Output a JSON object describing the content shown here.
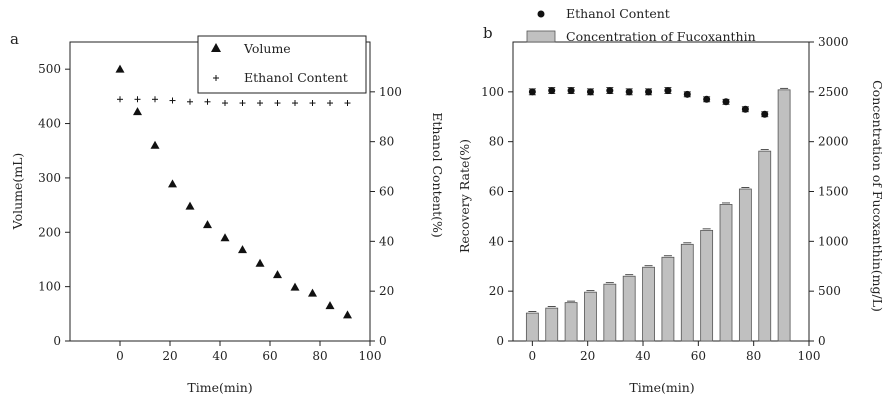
{
  "chart_data": [
    {
      "type": "scatter",
      "panel_label": "a",
      "xlabel": "Time(min)",
      "ylabel": "Volume(mL)",
      "y2label": "Ethanol Content(%)",
      "xlim": [
        -20,
        100
      ],
      "ylim": [
        0,
        550
      ],
      "y2lim": [
        0,
        120
      ],
      "xticks": [
        0,
        20,
        40,
        60,
        80,
        100
      ],
      "yticks": [
        0,
        100,
        200,
        300,
        400,
        500
      ],
      "y2ticks": [
        0,
        20,
        40,
        60,
        80,
        100
      ],
      "legend_position": "top-right",
      "series": [
        {
          "name": "Volume",
          "marker": "triangle",
          "axis": "left",
          "x": [
            0,
            7,
            14,
            21,
            28,
            35,
            42,
            49,
            56,
            63,
            70,
            77,
            84,
            91
          ],
          "y": [
            500,
            422,
            360,
            289,
            248,
            214,
            190,
            168,
            143,
            122,
            99,
            88,
            65,
            48
          ]
        },
        {
          "name": "Ethanol Content",
          "marker": "plus",
          "axis": "right",
          "x": [
            0,
            7,
            14,
            21,
            28,
            35,
            42,
            49,
            56,
            63,
            70,
            77,
            84,
            91
          ],
          "y": [
            97,
            97,
            97,
            96.5,
            96,
            96,
            95.5,
            95.5,
            95.5,
            95.5,
            95.5,
            95.5,
            95.5,
            95.5
          ]
        }
      ]
    },
    {
      "type": "bar",
      "panel_label": "b",
      "xlabel": "Time(min)",
      "ylabel": "Recovery Rate(%)",
      "y2label": "Concentration of Fucoxanthin(mg/L)",
      "xlim": [
        -7,
        100
      ],
      "ylim": [
        0,
        120
      ],
      "y2lim": [
        0,
        3000
      ],
      "xticks": [
        0,
        20,
        40,
        60,
        80,
        100
      ],
      "yticks": [
        0,
        20,
        40,
        60,
        80,
        100
      ],
      "y2ticks": [
        0,
        500,
        1000,
        1500,
        2000,
        2500,
        3000
      ],
      "legend_position": "top-left",
      "series": [
        {
          "name": "Ethanol Content",
          "marker": "circle",
          "axis": "left",
          "x": [
            0,
            7,
            14,
            21,
            28,
            35,
            42,
            49,
            56,
            63,
            70,
            77,
            84,
            91
          ],
          "y": [
            100,
            100.5,
            100.5,
            100,
            100.5,
            100,
            100,
            100.5,
            99,
            97,
            96,
            93,
            91,
            null
          ],
          "error": [
            1.2,
            1.2,
            1.2,
            1.2,
            1.2,
            1.2,
            1.2,
            1.2,
            1,
            1,
            1,
            1,
            1,
            null
          ]
        },
        {
          "name": "Concentration of Fucoxanthin",
          "type": "bar",
          "axis": "right",
          "x": [
            0,
            7,
            14,
            21,
            28,
            35,
            42,
            49,
            56,
            63,
            70,
            77,
            84,
            91
          ],
          "values": [
            280,
            330,
            385,
            490,
            570,
            650,
            740,
            840,
            970,
            1110,
            1370,
            1525,
            1905,
            2520
          ],
          "color": "#c0c0c0"
        }
      ]
    }
  ]
}
